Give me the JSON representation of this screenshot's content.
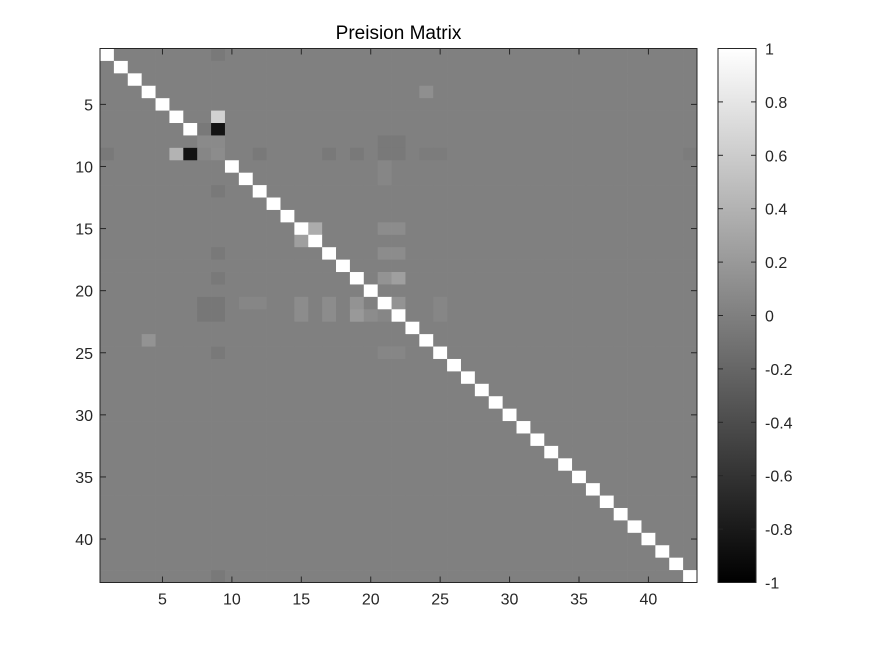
{
  "chart_data": {
    "type": "heatmap",
    "title": "Preision Matrix",
    "size": 43,
    "colormap": "gray",
    "clim": [
      -1,
      1
    ],
    "diagonal_value": 1,
    "background_value": 0,
    "entries": [
      [
        1,
        9,
        -0.05
      ],
      [
        4,
        24,
        0.12
      ],
      [
        6,
        9,
        0.65
      ],
      [
        7,
        9,
        -0.85
      ],
      [
        7,
        8,
        -0.05
      ],
      [
        8,
        9,
        0.08
      ],
      [
        8,
        8,
        0.08
      ],
      [
        9,
        1,
        -0.05
      ],
      [
        9,
        6,
        0.4
      ],
      [
        9,
        7,
        -0.85
      ],
      [
        9,
        8,
        0.05
      ],
      [
        9,
        9,
        0.1
      ],
      [
        9,
        12,
        -0.05
      ],
      [
        9,
        17,
        -0.05
      ],
      [
        9,
        19,
        -0.05
      ],
      [
        9,
        21,
        -0.05
      ],
      [
        9,
        22,
        -0.05
      ],
      [
        9,
        24,
        -0.03
      ],
      [
        9,
        25,
        -0.03
      ],
      [
        9,
        43,
        -0.03
      ],
      [
        8,
        21,
        -0.05
      ],
      [
        8,
        22,
        -0.05
      ],
      [
        10,
        21,
        0.05
      ],
      [
        11,
        21,
        0.05
      ],
      [
        12,
        9,
        -0.05
      ],
      [
        15,
        16,
        0.35
      ],
      [
        16,
        15,
        0.25
      ],
      [
        15,
        21,
        0.1
      ],
      [
        15,
        22,
        0.1
      ],
      [
        17,
        9,
        -0.05
      ],
      [
        17,
        21,
        0.1
      ],
      [
        17,
        22,
        0.1
      ],
      [
        19,
        9,
        -0.05
      ],
      [
        19,
        21,
        0.15
      ],
      [
        19,
        22,
        0.25
      ],
      [
        21,
        8,
        -0.07
      ],
      [
        21,
        9,
        -0.07
      ],
      [
        21,
        11,
        0.05
      ],
      [
        21,
        12,
        0.05
      ],
      [
        21,
        15,
        0.1
      ],
      [
        21,
        17,
        0.1
      ],
      [
        21,
        19,
        0.15
      ],
      [
        21,
        22,
        0.15
      ],
      [
        21,
        25,
        0.05
      ],
      [
        22,
        8,
        -0.07
      ],
      [
        22,
        9,
        -0.07
      ],
      [
        22,
        15,
        0.1
      ],
      [
        22,
        17,
        0.1
      ],
      [
        22,
        19,
        0.2
      ],
      [
        22,
        20,
        0.1
      ],
      [
        22,
        21,
        0.05
      ],
      [
        22,
        25,
        0.05
      ],
      [
        24,
        4,
        0.15
      ],
      [
        25,
        9,
        -0.05
      ],
      [
        25,
        21,
        0.05
      ],
      [
        25,
        22,
        0.05
      ],
      [
        43,
        9,
        -0.05
      ]
    ],
    "xticks": [
      5,
      10,
      15,
      20,
      25,
      30,
      35,
      40
    ],
    "yticks": [
      5,
      10,
      15,
      20,
      25,
      30,
      35,
      40
    ],
    "colorbar": {
      "ticks": [
        1,
        0.8,
        0.6,
        0.4,
        0.2,
        0,
        -0.2,
        -0.4,
        -0.6,
        -0.8,
        -1
      ],
      "tick_labels": [
        "1",
        "0.8",
        "0.6",
        "0.4",
        "0.2",
        "0",
        "-0.2",
        "-0.4",
        "-0.6",
        "-0.8",
        "-1"
      ]
    },
    "grid": false
  }
}
